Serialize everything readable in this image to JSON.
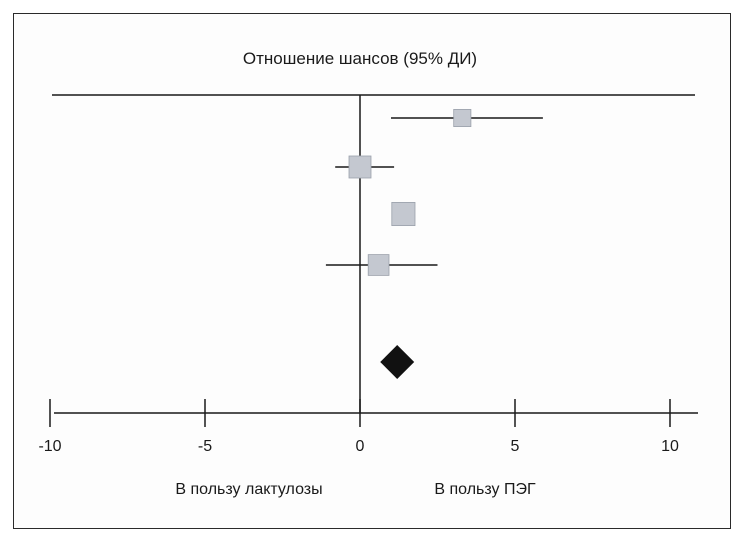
{
  "chart_data": {
    "type": "scatter",
    "title": "Отношение шансов (95% ДИ)",
    "xlabel": "",
    "ylabel": "",
    "xlim": [
      -20,
      22
    ],
    "x_ticks": [
      -10,
      -5,
      0,
      5,
      10
    ],
    "x_tick_labels": [
      "-10",
      "-5",
      "0",
      "5",
      "10"
    ],
    "favours_left": "В пользу лактулозы",
    "favours_right": "В пользу ПЭГ",
    "studies": [
      {
        "estimate": 3.3,
        "ci": [
          1.0,
          5.9
        ],
        "weight": 0.6
      },
      {
        "estimate": 0.0,
        "ci": [
          -0.8,
          1.1
        ],
        "weight": 1.0
      },
      {
        "estimate": 1.4,
        "ci": [
          1.4,
          1.4
        ],
        "weight": 1.1
      },
      {
        "estimate": 0.6,
        "ci": [
          -1.1,
          2.5
        ],
        "weight": 0.9
      }
    ],
    "pooled": {
      "estimate": 1.2
    },
    "colors": {
      "study_marker": "#c4c8d0",
      "pooled_marker": "#111111",
      "lines": "#1a1a1a"
    },
    "grid": false
  }
}
